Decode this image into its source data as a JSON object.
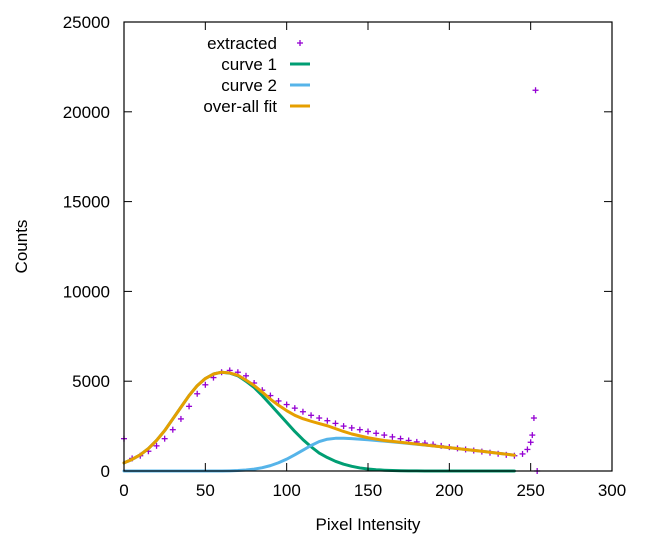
{
  "chart_data": {
    "type": "line",
    "title": "",
    "xlabel": "Pixel Intensity",
    "ylabel": "Counts",
    "xlim": [
      0,
      300
    ],
    "ylim": [
      0,
      25000
    ],
    "x_ticks": [
      0,
      50,
      100,
      150,
      200,
      250,
      300
    ],
    "y_ticks": [
      0,
      5000,
      10000,
      15000,
      20000,
      25000
    ],
    "x_tick_labels": [
      "0",
      "50",
      "100",
      "150",
      "200",
      "250",
      "300"
    ],
    "y_tick_labels": [
      "0",
      "5000",
      "10000",
      "15000",
      "20000",
      "25000"
    ],
    "grid": false,
    "legend_position": "top-left",
    "series": [
      {
        "name": "extracted",
        "type": "scatter",
        "marker": "plus",
        "color": "#9400d3",
        "x": [
          0,
          5,
          10,
          15,
          20,
          25,
          30,
          35,
          40,
          45,
          50,
          55,
          60,
          65,
          70,
          75,
          80,
          85,
          90,
          95,
          100,
          105,
          110,
          115,
          120,
          125,
          130,
          135,
          140,
          145,
          150,
          155,
          160,
          165,
          170,
          175,
          180,
          185,
          190,
          195,
          200,
          205,
          210,
          215,
          220,
          225,
          230,
          235,
          240,
          245,
          248,
          250,
          251,
          252,
          253,
          254
        ],
        "y": [
          1800,
          700,
          850,
          1100,
          1400,
          1800,
          2300,
          2900,
          3600,
          4300,
          4800,
          5200,
          5500,
          5600,
          5500,
          5300,
          4900,
          4500,
          4200,
          3900,
          3700,
          3500,
          3300,
          3100,
          2950,
          2800,
          2650,
          2500,
          2400,
          2300,
          2200,
          2100,
          2000,
          1900,
          1800,
          1700,
          1620,
          1550,
          1480,
          1400,
          1330,
          1260,
          1200,
          1140,
          1080,
          1020,
          960,
          900,
          850,
          950,
          1200,
          1600,
          2000,
          2950,
          21200,
          0
        ]
      },
      {
        "name": "curve 1",
        "type": "line",
        "color": "#009e73",
        "x": [
          0,
          5,
          10,
          15,
          20,
          25,
          30,
          35,
          40,
          45,
          50,
          55,
          60,
          65,
          70,
          75,
          80,
          85,
          90,
          95,
          100,
          105,
          110,
          115,
          120,
          125,
          130,
          135,
          140,
          145,
          150,
          155,
          160,
          165,
          170,
          175,
          180,
          185,
          190,
          200,
          210,
          220,
          230,
          240
        ],
        "y": [
          450,
          650,
          900,
          1250,
          1700,
          2250,
          2900,
          3550,
          4200,
          4750,
          5150,
          5400,
          5500,
          5450,
          5300,
          5000,
          4650,
          4200,
          3700,
          3200,
          2700,
          2200,
          1750,
          1350,
          1000,
          750,
          540,
          380,
          260,
          170,
          110,
          70,
          45,
          28,
          17,
          10,
          6,
          3,
          2,
          1,
          0,
          0,
          0,
          0
        ]
      },
      {
        "name": "curve 2",
        "type": "line",
        "color": "#56b4e9",
        "x": [
          0,
          20,
          40,
          60,
          65,
          70,
          75,
          80,
          85,
          90,
          95,
          100,
          105,
          110,
          115,
          120,
          125,
          130,
          135,
          140,
          150,
          160,
          170,
          180,
          190,
          200,
          210,
          220,
          230,
          240
        ],
        "y": [
          0,
          0,
          0,
          0,
          10,
          25,
          55,
          105,
          185,
          300,
          460,
          660,
          900,
          1160,
          1420,
          1640,
          1770,
          1820,
          1820,
          1800,
          1740,
          1660,
          1580,
          1490,
          1400,
          1300,
          1200,
          1100,
          990,
          880
        ]
      },
      {
        "name": "over-all fit",
        "type": "line",
        "color": "#e69f00",
        "x": [
          0,
          5,
          10,
          15,
          20,
          25,
          30,
          35,
          40,
          45,
          50,
          55,
          60,
          65,
          70,
          75,
          80,
          85,
          90,
          95,
          100,
          105,
          110,
          115,
          120,
          125,
          130,
          135,
          140,
          150,
          160,
          170,
          180,
          190,
          200,
          210,
          220,
          230,
          240
        ],
        "y": [
          450,
          650,
          900,
          1250,
          1700,
          2250,
          2900,
          3550,
          4200,
          4750,
          5150,
          5400,
          5500,
          5460,
          5330,
          5060,
          4760,
          4390,
          4000,
          3660,
          3360,
          3100,
          2910,
          2770,
          2640,
          2520,
          2360,
          2200,
          2060,
          1850,
          1700,
          1600,
          1500,
          1400,
          1300,
          1200,
          1100,
          990,
          880
        ]
      }
    ]
  }
}
